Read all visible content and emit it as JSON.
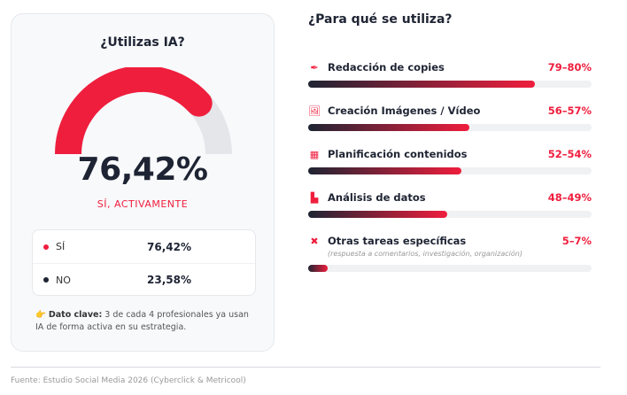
{
  "left": {
    "title": "¿Utilizas IA?",
    "gauge_value_percent": 76.42,
    "big_value": "76,42%",
    "subtitle": "SÍ, ACTIVAMENTE",
    "legend": [
      {
        "label": "SÍ",
        "value": "76,42%",
        "color": "#ef1e3d"
      },
      {
        "label": "NO",
        "value": "23,58%",
        "color": "#1e2433"
      }
    ],
    "key_icon": "👉",
    "key_label": "Dato clave:",
    "key_text": " 3 de cada 4 profesionales ya usan IA de forma activa en su estrategia."
  },
  "right": {
    "title": "¿Para qué se utiliza?",
    "items": [
      {
        "icon": "pen-icon",
        "glyph": "✒",
        "name": "Redacción de copies",
        "range": "79–80%",
        "fill_percent": 80
      },
      {
        "icon": "images-icon",
        "glyph": "🖼",
        "name": "Creación Imágenes / Vídeo",
        "range": "56–57%",
        "fill_percent": 57
      },
      {
        "icon": "calendar-icon",
        "glyph": "▦",
        "name": "Planificación contenidos",
        "range": "52–54%",
        "fill_percent": 54
      },
      {
        "icon": "chart-icon",
        "glyph": "▙",
        "name": "Análisis de datos",
        "range": "48–49%",
        "fill_percent": 49
      },
      {
        "icon": "tools-icon",
        "glyph": "✖",
        "name": "Otras tareas específicas",
        "note": "(respuesta a comentarios, investigación, organización)",
        "range": "5–7%",
        "fill_percent": 7
      }
    ]
  },
  "source": "Fuente: Estudio Social Media 2026 (Cyberclick & Metricool)",
  "colors": {
    "accent": "#ef1e3d",
    "dark": "#1e2433",
    "track": "#e5e6ea"
  }
}
